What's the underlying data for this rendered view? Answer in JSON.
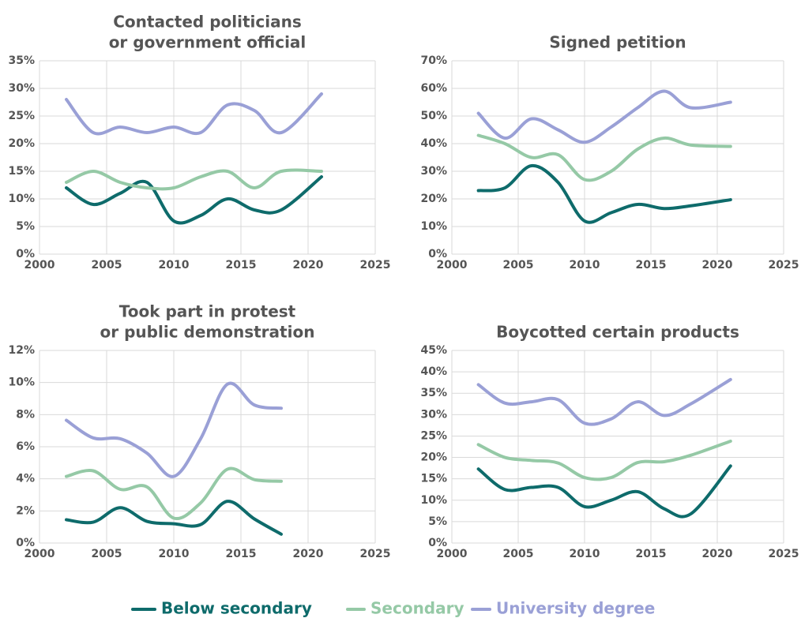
{
  "chart_data": [
    {
      "type": "line",
      "title": [
        "Contacted politicians",
        "or government official"
      ],
      "x": [
        2002,
        2004,
        2006,
        2008,
        2010,
        2012,
        2014,
        2016,
        2018,
        2021
      ],
      "series": [
        {
          "name": "Below secondary",
          "color": "#0e6b6b",
          "values": [
            12,
            9,
            11,
            13,
            6,
            7,
            10,
            8,
            8,
            14
          ]
        },
        {
          "name": "Secondary",
          "color": "#95c9a6",
          "values": [
            13,
            15,
            13,
            12,
            12,
            14,
            15,
            12,
            15,
            15
          ]
        },
        {
          "name": "University degree",
          "color": "#9aa0d6",
          "values": [
            28,
            22,
            23,
            22,
            23,
            22,
            27,
            26,
            22,
            29
          ]
        }
      ],
      "xlim": [
        2000,
        2025
      ],
      "xticks": [
        2000,
        2005,
        2010,
        2015,
        2020,
        2025
      ],
      "ylim": [
        0,
        35
      ],
      "yticks": [
        {
          "value": 0,
          "label": "0%"
        },
        {
          "value": 5,
          "label": "5%"
        },
        {
          "value": 10,
          "label": "10%"
        },
        {
          "value": 15,
          "label": "15%"
        },
        {
          "value": 20,
          "label": "20%"
        },
        {
          "value": 25,
          "label": "25%"
        },
        {
          "value": 30,
          "label": "30%"
        },
        {
          "value": 35,
          "label": "35%"
        }
      ],
      "grid": true
    },
    {
      "type": "line",
      "title": [
        "Signed petition"
      ],
      "x": [
        2002,
        2004,
        2006,
        2008,
        2010,
        2012,
        2014,
        2016,
        2018,
        2021
      ],
      "series": [
        {
          "name": "Below secondary",
          "color": "#0e6b6b",
          "values": [
            23,
            24,
            32,
            26,
            12,
            15,
            18,
            16.5,
            17.5,
            19.7
          ]
        },
        {
          "name": "Secondary",
          "color": "#95c9a6",
          "values": [
            43,
            40,
            35,
            36,
            27,
            30,
            38,
            42,
            39.5,
            39
          ]
        },
        {
          "name": "University degree",
          "color": "#9aa0d6",
          "values": [
            51,
            42,
            49,
            45,
            40.5,
            46,
            53,
            59,
            53,
            55
          ]
        }
      ],
      "xlim": [
        2000,
        2025
      ],
      "xticks": [
        2000,
        2005,
        2010,
        2015,
        2020,
        2025
      ],
      "ylim": [
        0,
        70
      ],
      "yticks": [
        {
          "value": 0,
          "label": "0%"
        },
        {
          "value": 10,
          "label": "10%"
        },
        {
          "value": 20,
          "label": "20%"
        },
        {
          "value": 30,
          "label": "30%"
        },
        {
          "value": 40,
          "label": "40%"
        },
        {
          "value": 50,
          "label": "50%"
        },
        {
          "value": 60,
          "label": "60%"
        },
        {
          "value": 70,
          "label": "70%"
        }
      ],
      "grid": true
    },
    {
      "type": "line",
      "title": [
        "Took part in protest",
        "or public demonstration"
      ],
      "x": [
        2002,
        2004,
        2006,
        2008,
        2010,
        2012,
        2014,
        2016,
        2018
      ],
      "series": [
        {
          "name": "Below secondary",
          "color": "#0e6b6b",
          "values": [
            1.45,
            1.3,
            2.2,
            1.35,
            1.2,
            1.15,
            2.6,
            1.5,
            0.55
          ]
        },
        {
          "name": "Secondary",
          "color": "#95c9a6",
          "values": [
            4.15,
            4.5,
            3.35,
            3.5,
            1.55,
            2.5,
            4.6,
            3.95,
            3.85
          ]
        },
        {
          "name": "University degree",
          "color": "#9aa0d6",
          "values": [
            7.65,
            6.55,
            6.5,
            5.6,
            4.15,
            6.5,
            9.9,
            8.6,
            8.4
          ]
        }
      ],
      "xlim": [
        2000,
        2025
      ],
      "xticks": [
        2000,
        2005,
        2010,
        2015,
        2020,
        2025
      ],
      "ylim": [
        0,
        12
      ],
      "yticks": [
        {
          "value": 0,
          "label": "0%"
        },
        {
          "value": 2,
          "label": "2%"
        },
        {
          "value": 4,
          "label": "4%"
        },
        {
          "value": 6,
          "label": "6%"
        },
        {
          "value": 8,
          "label": "8%"
        },
        {
          "value": 10,
          "label": "10%"
        },
        {
          "value": 12,
          "label": "12%"
        }
      ],
      "grid": true
    },
    {
      "type": "line",
      "title": [
        "Boycotted certain products"
      ],
      "x": [
        2002,
        2004,
        2006,
        2008,
        2010,
        2012,
        2014,
        2016,
        2018,
        2021
      ],
      "series": [
        {
          "name": "Below secondary",
          "color": "#0e6b6b",
          "values": [
            17.3,
            12.5,
            13,
            13,
            8.5,
            10,
            12,
            8,
            6.8,
            18
          ]
        },
        {
          "name": "Secondary",
          "color": "#95c9a6",
          "values": [
            23,
            20,
            19.3,
            18.7,
            15.3,
            15.3,
            18.8,
            19,
            20.5,
            23.8
          ]
        },
        {
          "name": "University degree",
          "color": "#9aa0d6",
          "values": [
            37,
            32.7,
            33,
            33.5,
            28,
            29,
            33,
            29.8,
            32.5,
            38.2
          ]
        }
      ],
      "xlim": [
        2000,
        2025
      ],
      "xticks": [
        2000,
        2005,
        2010,
        2015,
        2020,
        2025
      ],
      "ylim": [
        0,
        45
      ],
      "yticks": [
        {
          "value": 0,
          "label": "0%"
        },
        {
          "value": 5,
          "label": "5%"
        },
        {
          "value": 10,
          "label": "10%"
        },
        {
          "value": 15,
          "label": "15%"
        },
        {
          "value": 20,
          "label": "20%"
        },
        {
          "value": 25,
          "label": "25%"
        },
        {
          "value": 30,
          "label": "30%"
        },
        {
          "value": 35,
          "label": "35%"
        },
        {
          "value": 40,
          "label": "40%"
        },
        {
          "value": 45,
          "label": "45%"
        }
      ],
      "grid": true
    }
  ]
}
